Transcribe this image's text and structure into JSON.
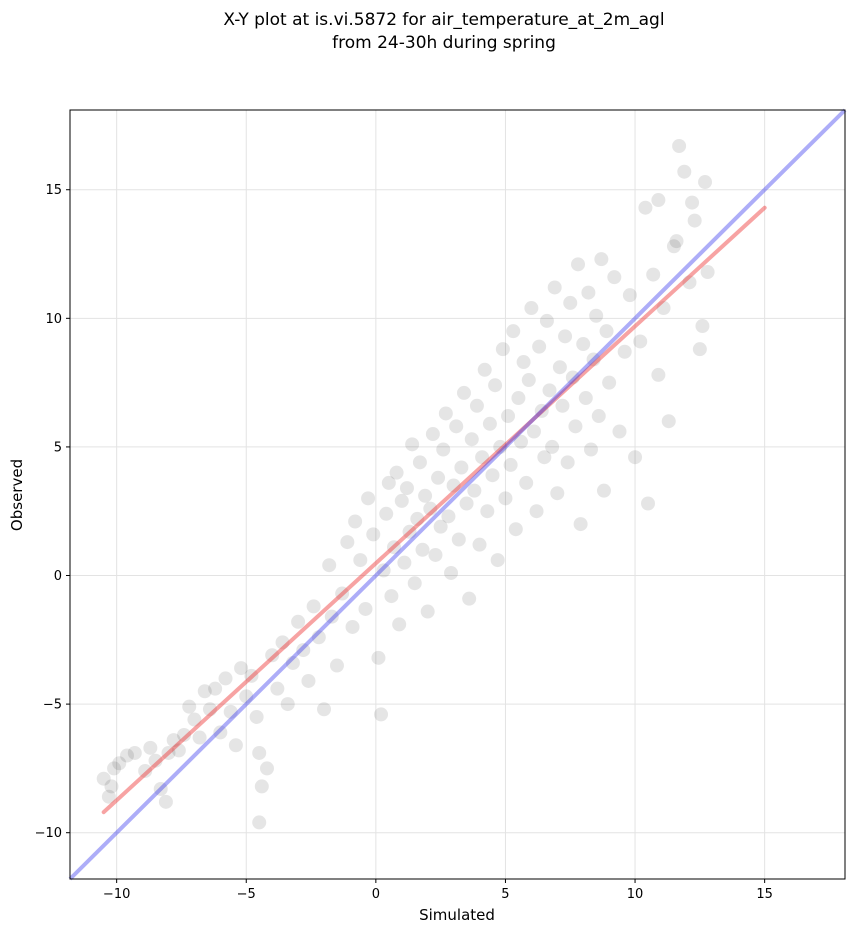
{
  "chart_data": {
    "type": "scatter",
    "title": "X-Y plot at is.vi.5872 for air_temperature_at_2m_agl",
    "subtitle": "from 24-30h during spring",
    "xlabel": "Simulated",
    "ylabel": "Observed",
    "xlim": [
      -11.8,
      18.1
    ],
    "ylim": [
      -11.8,
      18.1
    ],
    "x_ticks": [
      -10,
      -5,
      0,
      5,
      10,
      15
    ],
    "y_ticks": [
      -10,
      -5,
      0,
      5,
      10,
      15
    ],
    "x_tick_labels": [
      "−10",
      "−5",
      "0",
      "5",
      "10",
      "15"
    ],
    "y_tick_labels": [
      "−10",
      "−5",
      "0",
      "5",
      "10",
      "15"
    ],
    "grid": true,
    "point_color": "#000000",
    "regression_color": "#ee3333",
    "identity_color": "#3333ee",
    "regression_line": {
      "x": [
        -10.5,
        15.0
      ],
      "y": [
        -9.2,
        14.3
      ]
    },
    "identity_line": {
      "x": [
        -11.8,
        18.1
      ],
      "y": [
        -11.8,
        18.1
      ]
    },
    "points": [
      [
        -10.5,
        -7.9
      ],
      [
        -10.3,
        -8.6
      ],
      [
        -10.1,
        -7.5
      ],
      [
        -9.9,
        -7.3
      ],
      [
        -10.2,
        -8.2
      ],
      [
        -9.6,
        -7.0
      ],
      [
        -9.3,
        -6.9
      ],
      [
        -8.9,
        -7.6
      ],
      [
        -8.7,
        -6.7
      ],
      [
        -8.5,
        -7.2
      ],
      [
        -8.3,
        -8.3
      ],
      [
        -8.1,
        -8.8
      ],
      [
        -8.0,
        -6.9
      ],
      [
        -7.8,
        -6.4
      ],
      [
        -7.6,
        -6.8
      ],
      [
        -7.4,
        -6.2
      ],
      [
        -7.2,
        -5.1
      ],
      [
        -7.0,
        -5.6
      ],
      [
        -6.8,
        -6.3
      ],
      [
        -6.6,
        -4.5
      ],
      [
        -6.4,
        -5.2
      ],
      [
        -6.2,
        -4.4
      ],
      [
        -6.0,
        -6.1
      ],
      [
        -5.8,
        -4.0
      ],
      [
        -5.6,
        -5.3
      ],
      [
        -5.4,
        -6.6
      ],
      [
        -5.2,
        -3.6
      ],
      [
        -5.0,
        -4.7
      ],
      [
        -4.8,
        -3.9
      ],
      [
        -4.6,
        -5.5
      ],
      [
        -4.5,
        -6.9
      ],
      [
        -4.4,
        -8.2
      ],
      [
        -4.5,
        -9.6
      ],
      [
        -4.2,
        -7.5
      ],
      [
        -4.0,
        -3.1
      ],
      [
        -3.8,
        -4.4
      ],
      [
        -3.6,
        -2.6
      ],
      [
        -3.4,
        -5.0
      ],
      [
        -3.2,
        -3.4
      ],
      [
        -3.0,
        -1.8
      ],
      [
        -2.8,
        -2.9
      ],
      [
        -2.6,
        -4.1
      ],
      [
        -2.4,
        -1.2
      ],
      [
        -2.2,
        -2.4
      ],
      [
        -2.0,
        -5.2
      ],
      [
        -1.8,
        0.4
      ],
      [
        -1.7,
        -1.6
      ],
      [
        -1.5,
        -3.5
      ],
      [
        -1.3,
        -0.7
      ],
      [
        -1.1,
        1.3
      ],
      [
        -0.9,
        -2.0
      ],
      [
        -0.8,
        2.1
      ],
      [
        -0.6,
        0.6
      ],
      [
        -0.4,
        -1.3
      ],
      [
        -0.3,
        3.0
      ],
      [
        -0.1,
        1.6
      ],
      [
        0.1,
        -3.2
      ],
      [
        0.2,
        -5.4
      ],
      [
        0.3,
        0.2
      ],
      [
        0.4,
        2.4
      ],
      [
        0.5,
        3.6
      ],
      [
        0.6,
        -0.8
      ],
      [
        0.7,
        1.1
      ],
      [
        0.8,
        4.0
      ],
      [
        0.9,
        -1.9
      ],
      [
        1.0,
        2.9
      ],
      [
        1.1,
        0.5
      ],
      [
        1.2,
        3.4
      ],
      [
        1.3,
        1.7
      ],
      [
        1.4,
        5.1
      ],
      [
        1.5,
        -0.3
      ],
      [
        1.6,
        2.2
      ],
      [
        1.7,
        4.4
      ],
      [
        1.8,
        1.0
      ],
      [
        1.9,
        3.1
      ],
      [
        2.0,
        -1.4
      ],
      [
        2.1,
        2.6
      ],
      [
        2.2,
        5.5
      ],
      [
        2.3,
        0.8
      ],
      [
        2.4,
        3.8
      ],
      [
        2.5,
        1.9
      ],
      [
        2.6,
        4.9
      ],
      [
        2.7,
        6.3
      ],
      [
        2.8,
        2.3
      ],
      [
        2.9,
        0.1
      ],
      [
        3.0,
        3.5
      ],
      [
        3.1,
        5.8
      ],
      [
        3.2,
        1.4
      ],
      [
        3.3,
        4.2
      ],
      [
        3.4,
        7.1
      ],
      [
        3.5,
        2.8
      ],
      [
        3.6,
        -0.9
      ],
      [
        3.7,
        5.3
      ],
      [
        3.8,
        3.3
      ],
      [
        3.9,
        6.6
      ],
      [
        4.0,
        1.2
      ],
      [
        4.1,
        4.6
      ],
      [
        4.2,
        8.0
      ],
      [
        4.3,
        2.5
      ],
      [
        4.4,
        5.9
      ],
      [
        4.5,
        3.9
      ],
      [
        4.6,
        7.4
      ],
      [
        4.7,
        0.6
      ],
      [
        4.8,
        5.0
      ],
      [
        4.9,
        8.8
      ],
      [
        5.0,
        3.0
      ],
      [
        5.1,
        6.2
      ],
      [
        5.2,
        4.3
      ],
      [
        5.3,
        9.5
      ],
      [
        5.4,
        1.8
      ],
      [
        5.5,
        6.9
      ],
      [
        5.6,
        5.2
      ],
      [
        5.7,
        8.3
      ],
      [
        5.8,
        3.6
      ],
      [
        5.9,
        7.6
      ],
      [
        6.0,
        10.4
      ],
      [
        6.1,
        5.6
      ],
      [
        6.2,
        2.5
      ],
      [
        6.3,
        8.9
      ],
      [
        6.4,
        6.4
      ],
      [
        6.5,
        4.6
      ],
      [
        6.6,
        9.9
      ],
      [
        6.7,
        7.2
      ],
      [
        6.8,
        5.0
      ],
      [
        6.9,
        11.2
      ],
      [
        7.0,
        3.2
      ],
      [
        7.1,
        8.1
      ],
      [
        7.2,
        6.6
      ],
      [
        7.3,
        9.3
      ],
      [
        7.4,
        4.4
      ],
      [
        7.5,
        10.6
      ],
      [
        7.6,
        7.7
      ],
      [
        7.7,
        5.8
      ],
      [
        7.8,
        12.1
      ],
      [
        7.9,
        2.0
      ],
      [
        8.0,
        9.0
      ],
      [
        8.1,
        6.9
      ],
      [
        8.2,
        11.0
      ],
      [
        8.3,
        4.9
      ],
      [
        8.4,
        8.4
      ],
      [
        8.5,
        10.1
      ],
      [
        8.6,
        6.2
      ],
      [
        8.7,
        12.3
      ],
      [
        8.8,
        3.3
      ],
      [
        8.9,
        9.5
      ],
      [
        9.0,
        7.5
      ],
      [
        9.2,
        11.6
      ],
      [
        9.4,
        5.6
      ],
      [
        9.6,
        8.7
      ],
      [
        9.8,
        10.9
      ],
      [
        10.0,
        4.6
      ],
      [
        10.2,
        9.1
      ],
      [
        10.4,
        14.3
      ],
      [
        10.5,
        2.8
      ],
      [
        10.7,
        11.7
      ],
      [
        10.9,
        7.8
      ],
      [
        11.1,
        10.4
      ],
      [
        11.3,
        6.0
      ],
      [
        11.5,
        12.8
      ],
      [
        11.7,
        16.7
      ],
      [
        11.9,
        15.7
      ],
      [
        12.1,
        11.4
      ],
      [
        12.3,
        13.8
      ],
      [
        12.5,
        8.8
      ],
      [
        12.7,
        15.3
      ],
      [
        12.8,
        11.8
      ],
      [
        12.6,
        9.7
      ],
      [
        12.2,
        14.5
      ],
      [
        11.6,
        13.0
      ],
      [
        10.9,
        14.6
      ]
    ]
  }
}
